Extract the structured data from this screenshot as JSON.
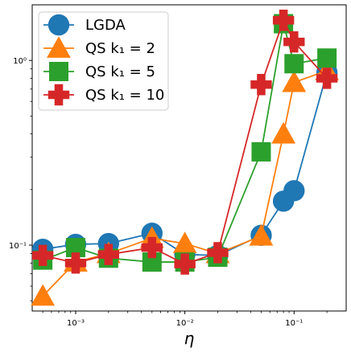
{
  "chart_data": {
    "type": "line",
    "xscale": "log",
    "yscale": "log",
    "xlabel": "η",
    "ylabel": "",
    "xlim": [
      0.0004,
      0.3
    ],
    "ylim": [
      0.044,
      2.0
    ],
    "grid": false,
    "legend_position": "top-left",
    "xticks": [
      {
        "value": 0.001,
        "label": "10⁻³"
      },
      {
        "value": 0.01,
        "label": "10⁻²"
      },
      {
        "value": 0.1,
        "label": "10⁻¹"
      }
    ],
    "yticks": [
      {
        "value": 0.1,
        "label": "10⁻¹"
      },
      {
        "value": 1,
        "label": "10⁰"
      }
    ],
    "x": [
      0.0005,
      0.001,
      0.002,
      0.005,
      0.01,
      0.02,
      0.05,
      0.08,
      0.1,
      0.2
    ],
    "series": [
      {
        "name": "LGDA",
        "marker": "circle",
        "color": "#1f77b4",
        "values": [
          0.095,
          0.101,
          0.102,
          0.116,
          0.089,
          0.088,
          0.113,
          0.173,
          0.197,
          0.86
        ]
      },
      {
        "name": "QS k₁ = 2",
        "marker": "triangle",
        "color": "#ff7f0e",
        "values": [
          0.053,
          0.081,
          0.09,
          0.109,
          0.102,
          0.09,
          0.112,
          0.4,
          0.76,
          0.88
        ]
      },
      {
        "name": "QS k₁ = 5",
        "marker": "square",
        "color": "#2ca02c",
        "values": [
          0.083,
          0.097,
          0.085,
          0.081,
          0.081,
          0.086,
          0.32,
          1.58,
          0.96,
          1.03
        ]
      },
      {
        "name": "QS k₁ = 10",
        "marker": "plus",
        "color": "#d62728",
        "values": [
          0.088,
          0.08,
          0.089,
          0.097,
          0.079,
          0.091,
          0.74,
          1.65,
          1.26,
          0.8
        ]
      }
    ]
  }
}
